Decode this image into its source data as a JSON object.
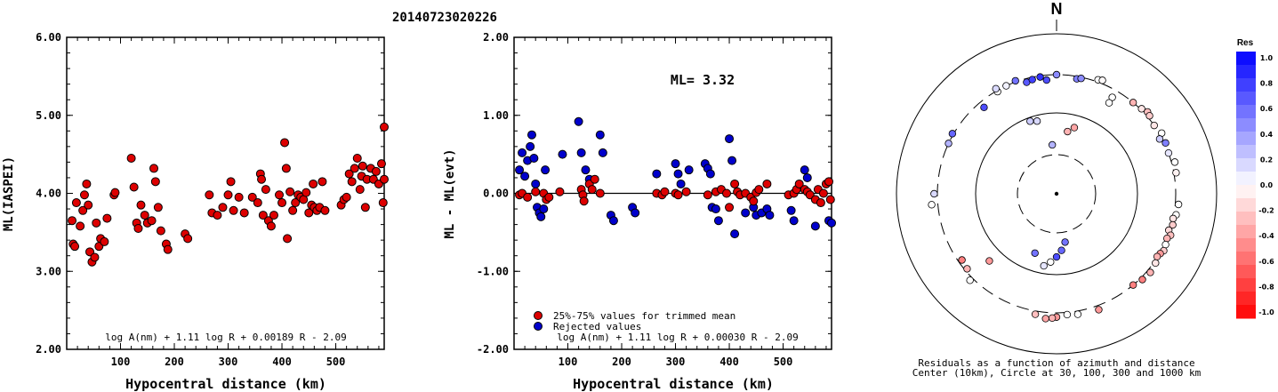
{
  "event_id": "20140723020226",
  "ml_label": "ML= 3.32",
  "polar": {
    "north_label": "N",
    "caption_line1": "Residuals as a function of azimuth and distance",
    "caption_line2": "Center (10km), Circle at 30, 100, 300 and 1000 km"
  },
  "colorbar": {
    "title": "Res",
    "ticks": [
      "1.0",
      "0.8",
      "0.6",
      "0.4",
      "0.2",
      "0.0",
      "-0.2",
      "-0.4",
      "-0.6",
      "-0.8",
      "-1.0"
    ],
    "max_color": "#0000ff",
    "zero_color": "#ffffff",
    "min_color": "#ff0000"
  },
  "legend": {
    "trimmed": "25%-75% values for trimmed mean",
    "rejected": "Rejected values",
    "trimmed_color": "#dd0000",
    "rejected_color": "#0000cc"
  },
  "chart_data": [
    {
      "type": "scatter",
      "xlabel": "Hypocentral distance (km)",
      "ylabel": "ML(IASPEI)",
      "formula": "log A(nm) + 1.11 log R + 0.00189 R - 2.09",
      "xlim": [
        0,
        590
      ],
      "ylim": [
        2.0,
        6.0
      ],
      "xticks": [
        "100",
        "200",
        "300",
        "400",
        "500"
      ],
      "yticks": [
        "2.00",
        "3.00",
        "4.00",
        "5.00",
        "6.00"
      ],
      "points": [
        [
          10,
          3.65
        ],
        [
          12,
          3.35
        ],
        [
          15,
          3.32
        ],
        [
          18,
          3.88
        ],
        [
          25,
          3.58
        ],
        [
          30,
          3.78
        ],
        [
          33,
          3.98
        ],
        [
          37,
          4.12
        ],
        [
          40,
          3.85
        ],
        [
          43,
          3.25
        ],
        [
          47,
          3.12
        ],
        [
          52,
          3.18
        ],
        [
          55,
          3.62
        ],
        [
          60,
          3.32
        ],
        [
          63,
          3.42
        ],
        [
          70,
          3.38
        ],
        [
          75,
          3.68
        ],
        [
          88,
          3.98
        ],
        [
          90,
          4.01
        ],
        [
          120,
          4.45
        ],
        [
          125,
          4.08
        ],
        [
          130,
          3.62
        ],
        [
          133,
          3.55
        ],
        [
          138,
          3.85
        ],
        [
          145,
          3.72
        ],
        [
          150,
          3.62
        ],
        [
          158,
          3.65
        ],
        [
          162,
          4.32
        ],
        [
          165,
          4.15
        ],
        [
          170,
          3.82
        ],
        [
          175,
          3.52
        ],
        [
          185,
          3.35
        ],
        [
          188,
          3.28
        ],
        [
          220,
          3.48
        ],
        [
          225,
          3.42
        ],
        [
          265,
          3.98
        ],
        [
          270,
          3.75
        ],
        [
          280,
          3.72
        ],
        [
          290,
          3.82
        ],
        [
          300,
          3.98
        ],
        [
          305,
          4.15
        ],
        [
          310,
          3.78
        ],
        [
          320,
          3.95
        ],
        [
          330,
          3.75
        ],
        [
          345,
          3.95
        ],
        [
          355,
          3.88
        ],
        [
          360,
          4.25
        ],
        [
          362,
          4.18
        ],
        [
          365,
          3.72
        ],
        [
          370,
          4.05
        ],
        [
          375,
          3.65
        ],
        [
          380,
          3.58
        ],
        [
          385,
          3.72
        ],
        [
          395,
          3.98
        ],
        [
          400,
          3.88
        ],
        [
          405,
          4.65
        ],
        [
          408,
          4.32
        ],
        [
          410,
          3.42
        ],
        [
          415,
          4.02
        ],
        [
          420,
          3.78
        ],
        [
          425,
          3.88
        ],
        [
          430,
          3.98
        ],
        [
          435,
          3.95
        ],
        [
          440,
          3.92
        ],
        [
          445,
          4.01
        ],
        [
          450,
          3.75
        ],
        [
          455,
          3.85
        ],
        [
          458,
          4.12
        ],
        [
          460,
          3.82
        ],
        [
          465,
          3.78
        ],
        [
          470,
          3.82
        ],
        [
          475,
          4.15
        ],
        [
          480,
          3.78
        ],
        [
          510,
          3.85
        ],
        [
          515,
          3.92
        ],
        [
          520,
          3.95
        ],
        [
          525,
          4.25
        ],
        [
          530,
          4.15
        ],
        [
          535,
          4.32
        ],
        [
          540,
          4.45
        ],
        [
          545,
          4.05
        ],
        [
          548,
          4.22
        ],
        [
          550,
          4.35
        ],
        [
          555,
          3.82
        ],
        [
          558,
          4.18
        ],
        [
          565,
          4.32
        ],
        [
          570,
          4.18
        ],
        [
          575,
          4.28
        ],
        [
          580,
          4.12
        ],
        [
          585,
          4.38
        ],
        [
          588,
          3.88
        ],
        [
          590,
          4.18
        ],
        [
          592,
          4.85
        ]
      ]
    },
    {
      "type": "scatter",
      "xlabel": "Hypocentral distance (km)",
      "ylabel": "ML - ML(evt)",
      "formula": "log A(nm) + 1.11 log R + 0.00030 R - 2.09",
      "xlim": [
        0,
        590
      ],
      "ylim": [
        -2.0,
        2.0
      ],
      "xticks": [
        "100",
        "200",
        "300",
        "400",
        "500"
      ],
      "yticks": [
        "-2.00",
        "-1.00",
        "0.00",
        "1.00",
        "2.00"
      ],
      "mean_line": 0.0,
      "trimmed": [
        [
          10,
          -0.02
        ],
        [
          15,
          0.0
        ],
        [
          25,
          -0.05
        ],
        [
          40,
          0.02
        ],
        [
          55,
          0.0
        ],
        [
          60,
          -0.08
        ],
        [
          65,
          -0.05
        ],
        [
          85,
          0.02
        ],
        [
          125,
          0.05
        ],
        [
          128,
          -0.02
        ],
        [
          130,
          -0.1
        ],
        [
          140,
          0.12
        ],
        [
          145,
          0.05
        ],
        [
          150,
          0.18
        ],
        [
          160,
          0.0
        ],
        [
          265,
          0.0
        ],
        [
          275,
          -0.02
        ],
        [
          280,
          0.02
        ],
        [
          300,
          0.0
        ],
        [
          305,
          -0.02
        ],
        [
          320,
          0.02
        ],
        [
          360,
          -0.02
        ],
        [
          375,
          0.02
        ],
        [
          385,
          0.05
        ],
        [
          395,
          0.0
        ],
        [
          400,
          -0.18
        ],
        [
          410,
          0.12
        ],
        [
          415,
          0.02
        ],
        [
          420,
          -0.02
        ],
        [
          430,
          0.0
        ],
        [
          440,
          -0.05
        ],
        [
          445,
          -0.1
        ],
        [
          450,
          0.01
        ],
        [
          455,
          0.05
        ],
        [
          470,
          0.12
        ],
        [
          510,
          -0.02
        ],
        [
          520,
          0.0
        ],
        [
          525,
          0.05
        ],
        [
          530,
          0.12
        ],
        [
          540,
          0.05
        ],
        [
          545,
          0.02
        ],
        [
          550,
          -0.02
        ],
        [
          560,
          -0.08
        ],
        [
          565,
          0.05
        ],
        [
          570,
          -0.12
        ],
        [
          575,
          0.0
        ],
        [
          580,
          0.12
        ],
        [
          585,
          0.15
        ],
        [
          588,
          -0.08
        ]
      ],
      "rejected": [
        [
          10,
          0.3
        ],
        [
          15,
          0.52
        ],
        [
          20,
          0.22
        ],
        [
          25,
          0.42
        ],
        [
          30,
          0.6
        ],
        [
          33,
          0.75
        ],
        [
          37,
          0.45
        ],
        [
          40,
          0.12
        ],
        [
          43,
          -0.18
        ],
        [
          47,
          -0.25
        ],
        [
          50,
          -0.3
        ],
        [
          55,
          -0.2
        ],
        [
          58,
          0.3
        ],
        [
          90,
          0.5
        ],
        [
          120,
          0.92
        ],
        [
          125,
          0.52
        ],
        [
          133,
          0.3
        ],
        [
          140,
          0.18
        ],
        [
          160,
          0.75
        ],
        [
          165,
          0.52
        ],
        [
          180,
          -0.28
        ],
        [
          185,
          -0.35
        ],
        [
          220,
          -0.18
        ],
        [
          225,
          -0.25
        ],
        [
          265,
          0.25
        ],
        [
          300,
          0.38
        ],
        [
          305,
          0.25
        ],
        [
          310,
          0.12
        ],
        [
          325,
          0.3
        ],
        [
          355,
          0.38
        ],
        [
          360,
          0.32
        ],
        [
          365,
          0.25
        ],
        [
          368,
          -0.18
        ],
        [
          375,
          -0.2
        ],
        [
          380,
          -0.35
        ],
        [
          400,
          0.7
        ],
        [
          405,
          0.42
        ],
        [
          410,
          -0.52
        ],
        [
          430,
          -0.25
        ],
        [
          445,
          -0.18
        ],
        [
          450,
          -0.28
        ],
        [
          460,
          -0.25
        ],
        [
          470,
          -0.2
        ],
        [
          475,
          -0.28
        ],
        [
          515,
          -0.22
        ],
        [
          520,
          -0.35
        ],
        [
          540,
          0.3
        ],
        [
          545,
          0.2
        ],
        [
          560,
          -0.42
        ],
        [
          585,
          -0.35
        ],
        [
          592,
          -0.38
        ]
      ]
    },
    {
      "type": "polar_scatter",
      "rings_km": [
        30,
        100,
        300,
        1000
      ],
      "points": [
        [
          0,
          300,
          0.45
        ],
        [
          10,
          280,
          0.5
        ],
        [
          12,
          290,
          0.45
        ],
        [
          335,
          300,
          0.05
        ],
        [
          330,
          290,
          0.0
        ],
        [
          340,
          310,
          0.55
        ],
        [
          345,
          270,
          0.65
        ],
        [
          348,
          280,
          0.75
        ],
        [
          352,
          290,
          0.8
        ],
        [
          355,
          260,
          0.7
        ],
        [
          20,
          320,
          0.0
        ],
        [
          22,
          330,
          -0.02
        ],
        [
          30,
          240,
          0.0
        ],
        [
          40,
          300,
          -0.3
        ],
        [
          45,
          310,
          -0.1
        ],
        [
          48,
          330,
          -0.25
        ],
        [
          50,
          320,
          -0.2
        ],
        [
          55,
          300,
          -0.1
        ],
        [
          60,
          320,
          0.0
        ],
        [
          62,
          280,
          0.2
        ],
        [
          65,
          310,
          0.5
        ],
        [
          70,
          300,
          0.1
        ],
        [
          75,
          330,
          0.0
        ],
        [
          80,
          320,
          -0.05
        ],
        [
          95,
          330,
          0.0
        ],
        [
          100,
          320,
          0.0
        ],
        [
          102,
          300,
          -0.1
        ],
        [
          105,
          310,
          -0.2
        ],
        [
          108,
          290,
          -0.15
        ],
        [
          110,
          320,
          -0.25
        ],
        [
          112,
          300,
          -0.3
        ],
        [
          115,
          310,
          0.0
        ],
        [
          118,
          320,
          -0.2
        ],
        [
          120,
          305,
          -0.4
        ],
        [
          122,
          295,
          -0.3
        ],
        [
          125,
          315,
          -0.1
        ],
        [
          130,
          330,
          -0.3
        ],
        [
          135,
          320,
          -0.5
        ],
        [
          140,
          300,
          -0.5
        ],
        [
          160,
          340,
          -0.4
        ],
        [
          170,
          330,
          0.0
        ],
        [
          175,
          320,
          0.0
        ],
        [
          180,
          340,
          -0.4
        ],
        [
          182,
          350,
          -0.3
        ],
        [
          185,
          360,
          -0.35
        ],
        [
          190,
          330,
          -0.25
        ],
        [
          225,
          330,
          0.0
        ],
        [
          230,
          280,
          -0.3
        ],
        [
          235,
          270,
          -0.5
        ],
        [
          265,
          360,
          0.0
        ],
        [
          270,
          330,
          0.15
        ],
        [
          295,
          300,
          0.3
        ],
        [
          300,
          310,
          0.6
        ],
        [
          320,
          250,
          0.7
        ],
        [
          330,
          320,
          0.15
        ],
        [
          340,
          90,
          0.2
        ],
        [
          345,
          85,
          0.15
        ],
        [
          355,
          40,
          0.3
        ],
        [
          10,
          60,
          -0.3
        ],
        [
          15,
          70,
          -0.35
        ],
        [
          170,
          40,
          0.55
        ],
        [
          175,
          50,
          0.6
        ],
        [
          180,
          60,
          0.7
        ],
        [
          185,
          70,
          0.0
        ],
        [
          190,
          80,
          0.1
        ],
        [
          200,
          60,
          0.55
        ],
        [
          225,
          150,
          -0.4
        ],
        [
          30,
          200,
          0.0
        ]
      ]
    }
  ]
}
